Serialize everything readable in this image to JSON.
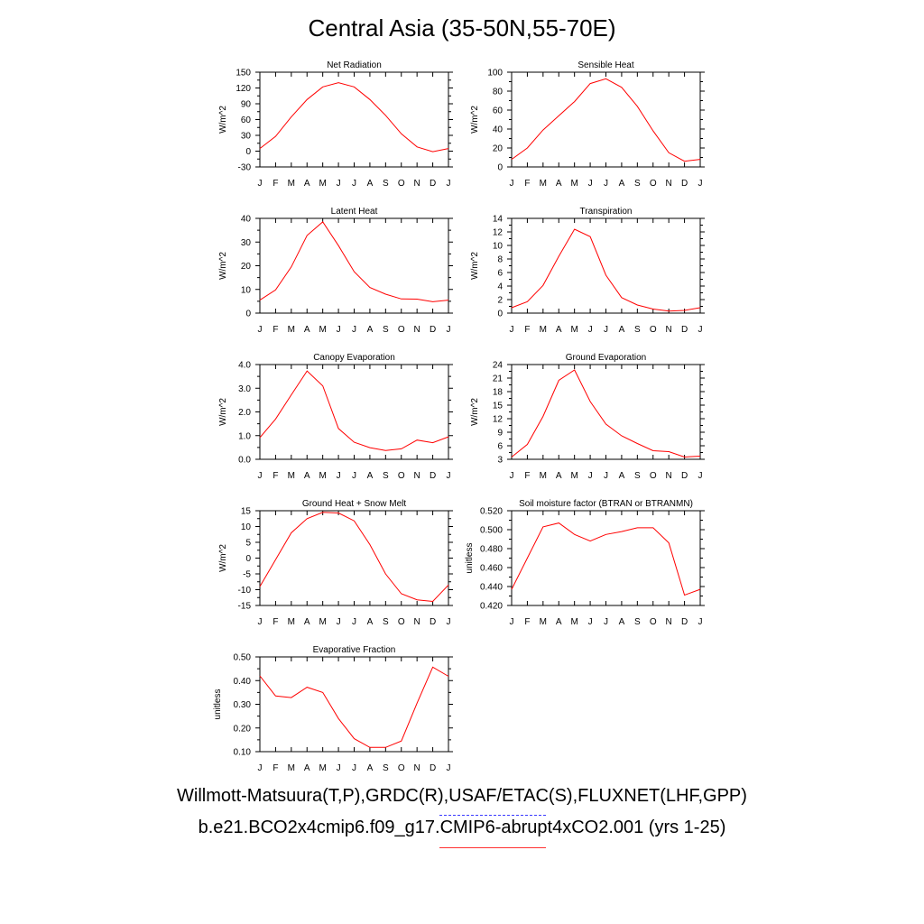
{
  "title": "Central Asia (35-50N,55-70E)",
  "legend": {
    "observations": "Willmott-Matsuura(T,P),GRDC(R),USAF/ETAC(S),FLUXNET(LHF,GPP)",
    "model": "b.e21.BCO2x4cmip6.f09_g17.CMIP6-abrupt4xCO2.001 (yrs 1-25)",
    "model_color": "#ff0000",
    "observations_color": "#3a3aff"
  },
  "chart_data": [
    {
      "type": "line",
      "title": "Net Radiation",
      "ylabel": "W/m^2",
      "x": [
        "J",
        "F",
        "M",
        "A",
        "M",
        "J",
        "J",
        "A",
        "S",
        "O",
        "N",
        "D",
        "J"
      ],
      "yticks": [
        "-30",
        "0",
        "30",
        "60",
        "90",
        "120",
        "150"
      ],
      "ylim": [
        -30,
        150
      ],
      "series": [
        {
          "values": [
            5,
            28,
            65,
            98,
            122,
            130,
            122,
            98,
            68,
            33,
            8,
            -1,
            5
          ]
        }
      ]
    },
    {
      "type": "line",
      "title": "Sensible Heat",
      "ylabel": "W/m^2",
      "x": [
        "J",
        "F",
        "M",
        "A",
        "M",
        "J",
        "J",
        "A",
        "S",
        "O",
        "N",
        "D",
        "J"
      ],
      "yticks": [
        "0",
        "20",
        "40",
        "60",
        "80",
        "100"
      ],
      "ylim": [
        0,
        100
      ],
      "series": [
        {
          "values": [
            8,
            20,
            39,
            54,
            69,
            88,
            93,
            84,
            64,
            38,
            15,
            6,
            8
          ]
        }
      ]
    },
    {
      "type": "line",
      "title": "Latent Heat",
      "ylabel": "W/m^2",
      "x": [
        "J",
        "F",
        "M",
        "A",
        "M",
        "J",
        "J",
        "A",
        "S",
        "O",
        "N",
        "D",
        "J"
      ],
      "yticks": [
        "0",
        "10",
        "20",
        "30",
        "40"
      ],
      "ylim": [
        0,
        40
      ],
      "series": [
        {
          "values": [
            5.5,
            9.8,
            19.5,
            32.8,
            38.5,
            28.5,
            17.5,
            10.8,
            8,
            6,
            5.9,
            4.8,
            5.5
          ]
        }
      ]
    },
    {
      "type": "line",
      "title": "Transpiration",
      "ylabel": "W/m^2",
      "x": [
        "J",
        "F",
        "M",
        "A",
        "M",
        "J",
        "J",
        "A",
        "S",
        "O",
        "N",
        "D",
        "J"
      ],
      "yticks": [
        "0",
        "2",
        "4",
        "6",
        "8",
        "10",
        "12",
        "14"
      ],
      "ylim": [
        0,
        14
      ],
      "series": [
        {
          "values": [
            0.8,
            1.7,
            4.1,
            8.4,
            12.4,
            11.3,
            5.6,
            2.3,
            1.2,
            0.6,
            0.3,
            0.4,
            0.8
          ]
        }
      ]
    },
    {
      "type": "line",
      "title": "Canopy Evaporation",
      "ylabel": "W/m^2",
      "x": [
        "J",
        "F",
        "M",
        "A",
        "M",
        "J",
        "J",
        "A",
        "S",
        "O",
        "N",
        "D",
        "J"
      ],
      "yticks": [
        "0.0",
        "1.0",
        "2.0",
        "3.0",
        "4.0"
      ],
      "ylim": [
        0,
        4
      ],
      "series": [
        {
          "values": [
            0.92,
            1.7,
            2.72,
            3.73,
            3.1,
            1.3,
            0.72,
            0.49,
            0.37,
            0.44,
            0.81,
            0.7,
            0.95
          ]
        }
      ]
    },
    {
      "type": "line",
      "title": "Ground Evaporation",
      "ylabel": "W/m^2",
      "x": [
        "J",
        "F",
        "M",
        "A",
        "M",
        "J",
        "J",
        "A",
        "S",
        "O",
        "N",
        "D",
        "J"
      ],
      "yticks": [
        "3",
        "6",
        "9",
        "12",
        "15",
        "18",
        "21",
        "24"
      ],
      "ylim": [
        3,
        24
      ],
      "series": [
        {
          "values": [
            3.5,
            6.3,
            12.5,
            20.5,
            22.8,
            15.8,
            10.8,
            8.2,
            6.5,
            4.9,
            4.7,
            3.5,
            3.7
          ]
        }
      ]
    },
    {
      "type": "line",
      "title": "Ground Heat + Snow Melt",
      "ylabel": "W/m^2",
      "x": [
        "J",
        "F",
        "M",
        "A",
        "M",
        "J",
        "J",
        "A",
        "S",
        "O",
        "N",
        "D",
        "J"
      ],
      "yticks": [
        "-15",
        "-10",
        "-5",
        "0",
        "5",
        "10",
        "15"
      ],
      "ylim": [
        -15,
        15
      ],
      "series": [
        {
          "values": [
            -9,
            -0.5,
            8,
            12.5,
            14.5,
            14.3,
            11.8,
            4.3,
            -5,
            -11.3,
            -13.2,
            -13.7,
            -8.5
          ]
        }
      ]
    },
    {
      "type": "line",
      "title": "Soil moisture factor (BTRAN or BTRANMN)",
      "ylabel": "unitless",
      "x": [
        "J",
        "F",
        "M",
        "A",
        "M",
        "J",
        "J",
        "A",
        "S",
        "O",
        "N",
        "D",
        "J"
      ],
      "yticks": [
        "0.420",
        "0.440",
        "0.460",
        "0.480",
        "0.500",
        "0.520"
      ],
      "ylim": [
        0.42,
        0.52
      ],
      "series": [
        {
          "values": [
            0.437,
            0.47,
            0.503,
            0.507,
            0.495,
            0.488,
            0.495,
            0.498,
            0.502,
            0.502,
            0.486,
            0.431,
            0.437
          ]
        }
      ]
    },
    {
      "type": "line",
      "title": "Evaporative Fraction",
      "ylabel": "unitless",
      "x": [
        "J",
        "F",
        "M",
        "A",
        "M",
        "J",
        "J",
        "A",
        "S",
        "O",
        "N",
        "D",
        "J"
      ],
      "yticks": [
        "0.10",
        "0.20",
        "0.30",
        "0.40",
        "0.50"
      ],
      "ylim": [
        0.1,
        0.5
      ],
      "series": [
        {
          "values": [
            0.42,
            0.335,
            0.328,
            0.372,
            0.35,
            0.24,
            0.155,
            0.118,
            0.118,
            0.145,
            0.305,
            0.457,
            0.418
          ]
        }
      ]
    }
  ]
}
